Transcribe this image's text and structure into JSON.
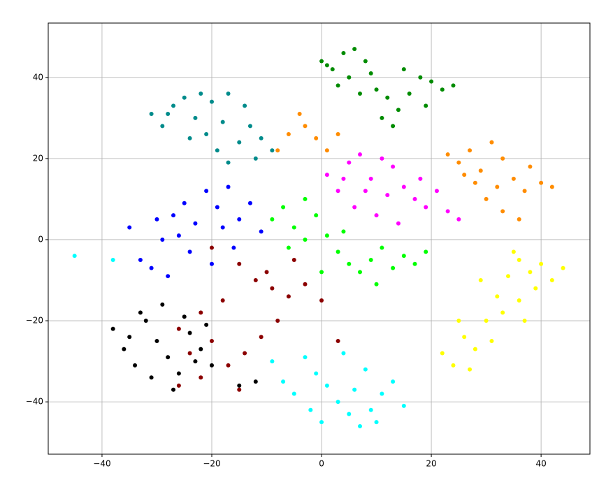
{
  "chart_data": {
    "type": "scatter",
    "xlim": [
      -49.8,
      48.9
    ],
    "ylim": [
      -52.9,
      53.4
    ],
    "xticks": [
      {
        "value": -40,
        "label": "−40"
      },
      {
        "value": -20,
        "label": "−20"
      },
      0,
      20,
      40
    ],
    "yticks": [
      {
        "value": -40,
        "label": "−40"
      },
      {
        "value": -20,
        "label": "−20"
      },
      0,
      20,
      40
    ],
    "grid": true,
    "series": [
      {
        "color": "#008b00",
        "x": [
          0,
          2,
          4,
          6,
          8,
          5,
          3,
          10,
          12,
          14,
          11,
          16,
          18,
          20,
          22,
          24,
          19,
          15,
          9,
          7,
          13,
          1
        ],
        "y": [
          44,
          42,
          46,
          47,
          44,
          40,
          38,
          37,
          35,
          32,
          30,
          36,
          40,
          39,
          37,
          38,
          33,
          42,
          41,
          36,
          28,
          43
        ]
      },
      {
        "color": "#008b8b",
        "x": [
          -31,
          -29,
          -27,
          -25,
          -23,
          -21,
          -19,
          -17,
          -15,
          -13,
          -11,
          -9,
          -20,
          -17,
          -14,
          -24,
          -28,
          -12,
          -18,
          -22
        ],
        "y": [
          31,
          28,
          33,
          35,
          30,
          26,
          22,
          19,
          24,
          28,
          25,
          22,
          34,
          36,
          33,
          25,
          31,
          20,
          29,
          36
        ]
      },
      {
        "color": "#ff8c00",
        "x": [
          23,
          25,
          27,
          29,
          31,
          33,
          35,
          37,
          40,
          42,
          30,
          33,
          36,
          28,
          38,
          32,
          26,
          -6,
          -3,
          -1,
          1,
          3,
          -4,
          -8
        ],
        "y": [
          21,
          19,
          22,
          17,
          24,
          20,
          15,
          12,
          14,
          13,
          10,
          7,
          5,
          14,
          18,
          13,
          16,
          26,
          28,
          25,
          22,
          26,
          31,
          22
        ]
      },
      {
        "color": "#ff00ff",
        "x": [
          1,
          3,
          5,
          7,
          9,
          11,
          13,
          15,
          17,
          19,
          21,
          23,
          25,
          6,
          10,
          14,
          12,
          4,
          18,
          8
        ],
        "y": [
          16,
          12,
          19,
          21,
          15,
          20,
          18,
          13,
          10,
          8,
          12,
          7,
          5,
          8,
          6,
          4,
          11,
          15,
          15,
          12
        ]
      },
      {
        "color": "#0000ff",
        "x": [
          -35,
          -33,
          -31,
          -29,
          -27,
          -25,
          -23,
          -21,
          -19,
          -17,
          -15,
          -13,
          -11,
          -24,
          -20,
          -28,
          -30,
          -16,
          -26,
          -18
        ],
        "y": [
          3,
          -5,
          -7,
          0,
          6,
          9,
          4,
          12,
          8,
          13,
          5,
          9,
          2,
          -3,
          -6,
          -9,
          5,
          -2,
          1,
          3
        ]
      },
      {
        "color": "#00ff00",
        "x": [
          -9,
          -7,
          -5,
          -3,
          -1,
          1,
          3,
          5,
          7,
          9,
          11,
          13,
          15,
          17,
          19,
          -6,
          0,
          4,
          10,
          -3
        ],
        "y": [
          5,
          8,
          3,
          10,
          6,
          1,
          -3,
          -6,
          -8,
          -5,
          -2,
          -7,
          -4,
          -6,
          -3,
          -2,
          -8,
          2,
          -11,
          0
        ]
      },
      {
        "color": "#8b0000",
        "x": [
          -20,
          -15,
          -12,
          -9,
          -6,
          -3,
          0,
          -18,
          -22,
          -26,
          -24,
          -20,
          -17,
          -14,
          -11,
          -8,
          -22,
          -26,
          -15,
          -10,
          -5,
          3
        ],
        "y": [
          -2,
          -6,
          -10,
          -12,
          -14,
          -11,
          -15,
          -15,
          -18,
          -22,
          -28,
          -25,
          -31,
          -28,
          -24,
          -20,
          -34,
          -36,
          -37,
          -8,
          -5,
          -25
        ]
      },
      {
        "color": "#000000",
        "x": [
          -38,
          -36,
          -34,
          -32,
          -30,
          -28,
          -26,
          -24,
          -22,
          -20,
          -33,
          -29,
          -25,
          -31,
          -27,
          -35,
          -23,
          -21,
          -15,
          -12
        ],
        "y": [
          -22,
          -27,
          -31,
          -20,
          -25,
          -29,
          -33,
          -23,
          -27,
          -31,
          -18,
          -16,
          -19,
          -34,
          -37,
          -24,
          -30,
          -21,
          -36,
          -35
        ]
      },
      {
        "color": "#00ffff",
        "x": [
          -9,
          -7,
          -5,
          -3,
          -1,
          1,
          3,
          5,
          7,
          9,
          11,
          13,
          15,
          4,
          8,
          -2,
          0,
          6,
          10,
          -45,
          -38
        ],
        "y": [
          -30,
          -35,
          -38,
          -29,
          -33,
          -36,
          -40,
          -43,
          -46,
          -42,
          -38,
          -35,
          -41,
          -28,
          -32,
          -42,
          -45,
          -37,
          -45,
          -4,
          -5
        ]
      },
      {
        "color": "#ffff00",
        "x": [
          22,
          24,
          26,
          28,
          30,
          32,
          34,
          36,
          38,
          40,
          42,
          44,
          33,
          36,
          39,
          27,
          25,
          31,
          35,
          29,
          37
        ],
        "y": [
          -28,
          -31,
          -24,
          -27,
          -20,
          -14,
          -9,
          -5,
          -8,
          -6,
          -10,
          -7,
          -18,
          -15,
          -12,
          -32,
          -20,
          -25,
          -3,
          -10,
          -20
        ]
      }
    ]
  }
}
